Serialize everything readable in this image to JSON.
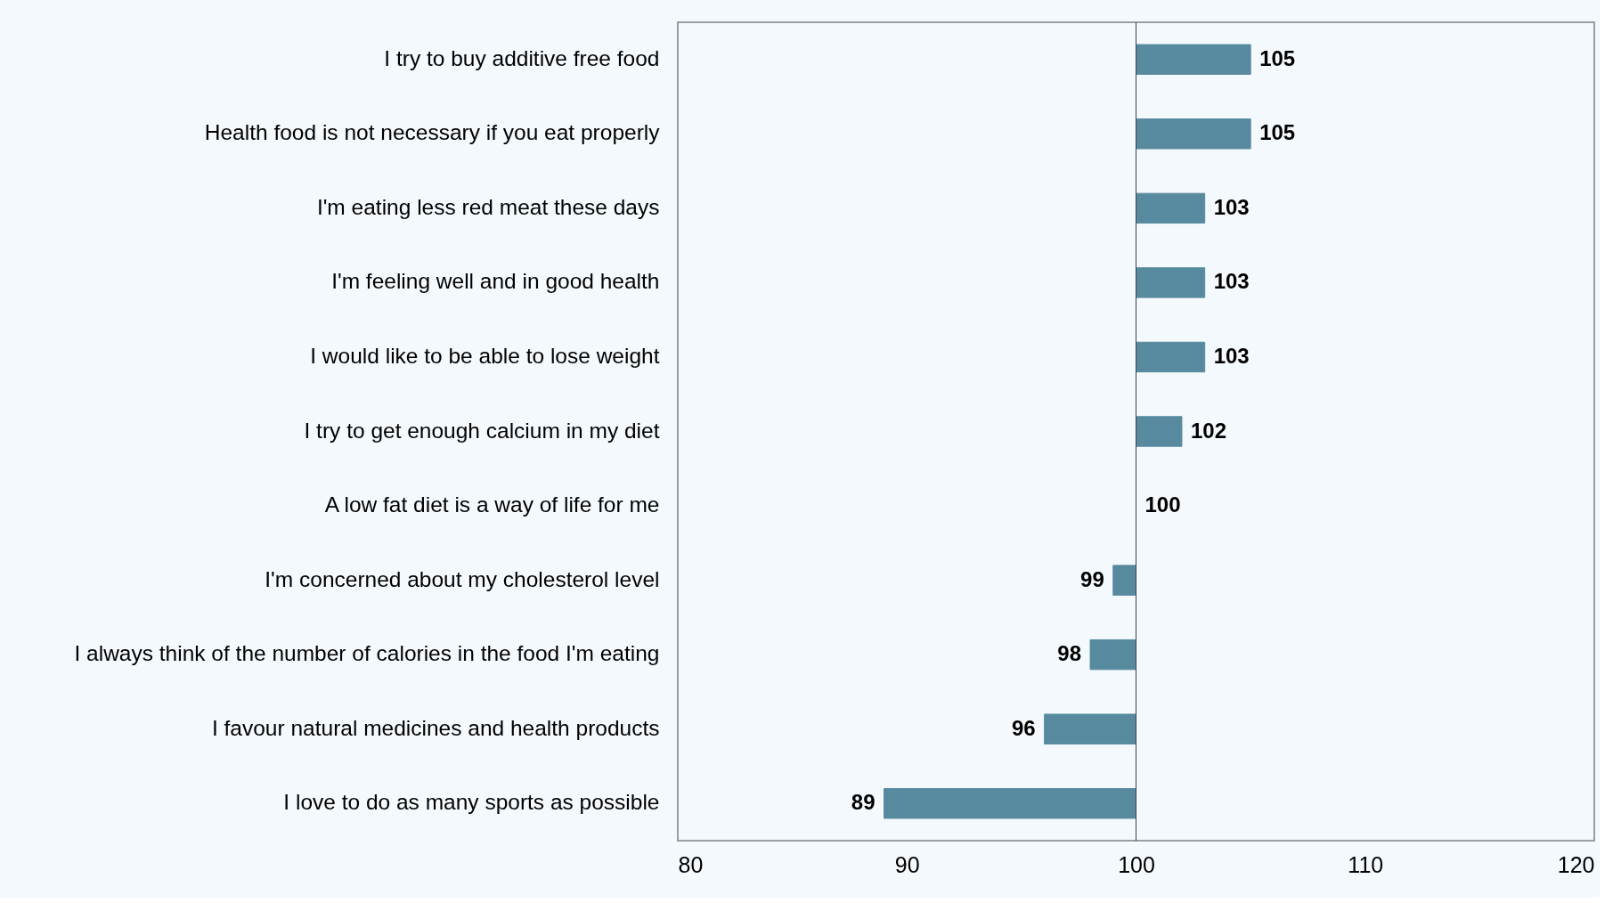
{
  "chart_data": {
    "type": "bar",
    "orientation": "horizontal",
    "categories": [
      "I try to buy additive free food",
      "Health food is not necessary if you eat properly",
      "I'm eating less red meat these days",
      "I'm feeling well and in good health",
      "I would like to be able to lose weight",
      "I try to get enough calcium in my diet",
      "A low fat diet is a way of life for me",
      "I'm concerned about my cholesterol level",
      "I always think of the number of calories in the food I'm eating",
      "I favour natural medicines and health products",
      "I love to do as many sports as possible"
    ],
    "base": [
      100,
      100,
      100,
      100,
      100,
      100,
      100,
      100,
      100,
      100,
      100
    ],
    "values": [
      5,
      5,
      3,
      3,
      3,
      2,
      0,
      -1,
      -2,
      -4,
      -11
    ],
    "value_labels": [
      "105",
      "105",
      "103",
      "103",
      "103",
      "102",
      "100",
      "99",
      "98",
      "96",
      "89"
    ],
    "color": "#588a9f",
    "xlim": [
      80,
      120
    ],
    "xticks": [
      80,
      90,
      100,
      110,
      120
    ],
    "ref_lines": [
      {
        "axis": "x",
        "value": 100,
        "color": "#404040"
      }
    ]
  }
}
